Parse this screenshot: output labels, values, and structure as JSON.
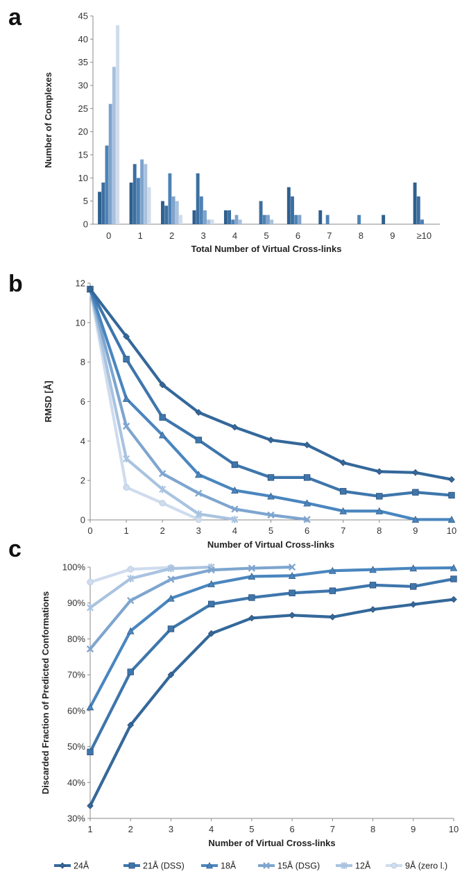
{
  "panels": {
    "a": "a",
    "b": "b",
    "c": "c"
  },
  "chart_data": [
    {
      "type": "bar",
      "panel": "a",
      "xlabel": "Total Number of Virtual Cross-links",
      "ylabel": "Number of Complexes",
      "ylim": [
        0,
        45
      ],
      "yticks": [
        0,
        5,
        10,
        15,
        20,
        25,
        30,
        35,
        40,
        45
      ],
      "grid": false,
      "categories": [
        "0",
        "1",
        "2",
        "3",
        "4",
        "5",
        "6",
        "7",
        "8",
        "9",
        "≥10"
      ],
      "series": [
        {
          "name": "24Å",
          "color": "#2f5f8e",
          "values": [
            7,
            9,
            5,
            3,
            3,
            0,
            8,
            3,
            0,
            2,
            9
          ]
        },
        {
          "name": "21Å (DSS)",
          "color": "#3c6fa0",
          "values": [
            9,
            13,
            4,
            11,
            3,
            5,
            6,
            0,
            0,
            0,
            6
          ]
        },
        {
          "name": "18Å",
          "color": "#4e82b6",
          "values": [
            17,
            10,
            11,
            6,
            1,
            2,
            2,
            2,
            2,
            0,
            1
          ]
        },
        {
          "name": "15Å (DSG)",
          "color": "#7ea3cc",
          "values": [
            26,
            14,
            6,
            3,
            2,
            2,
            2,
            0,
            0,
            0,
            0
          ]
        },
        {
          "name": "12Å",
          "color": "#a8c1de",
          "values": [
            34,
            13,
            5,
            1,
            1,
            1,
            0,
            0,
            0,
            0,
            0
          ]
        },
        {
          "name": "9Å (zero l.)",
          "color": "#cfdcec",
          "values": [
            43,
            8,
            2,
            1,
            0,
            0,
            0,
            0,
            0,
            0,
            0
          ]
        }
      ]
    },
    {
      "type": "line",
      "panel": "b",
      "xlabel": "Number of Virtual Cross-links",
      "ylabel": "RMSD [Å]",
      "xlim": [
        0,
        10
      ],
      "ylim": [
        0,
        12
      ],
      "xticks": [
        0,
        1,
        2,
        3,
        4,
        5,
        6,
        7,
        8,
        9,
        10
      ],
      "yticks": [
        0,
        2,
        4,
        6,
        8,
        10,
        12
      ],
      "grid": false,
      "series": [
        {
          "name": "24Å",
          "color": "#34689a",
          "marker": "diamond",
          "x": [
            0,
            1,
            2,
            3,
            4,
            5,
            6,
            7,
            8,
            9,
            10
          ],
          "y": [
            11.7,
            9.3,
            6.85,
            5.45,
            4.7,
            4.05,
            3.8,
            2.9,
            2.45,
            2.4,
            2.05
          ]
        },
        {
          "name": "21Å (DSS)",
          "color": "#3e76ac",
          "marker": "square",
          "x": [
            0,
            1,
            2,
            3,
            4,
            5,
            6,
            7,
            8,
            9,
            10
          ],
          "y": [
            11.7,
            8.15,
            5.2,
            4.05,
            2.8,
            2.15,
            2.15,
            1.45,
            1.2,
            1.4,
            1.25
          ]
        },
        {
          "name": "18Å",
          "color": "#4a86bf",
          "marker": "triangle",
          "x": [
            0,
            1,
            2,
            3,
            4,
            5,
            6,
            7,
            8,
            9,
            10
          ],
          "y": [
            11.7,
            6.15,
            4.3,
            2.3,
            1.5,
            1.2,
            0.85,
            0.45,
            0.45,
            0.02,
            0.02
          ]
        },
        {
          "name": "15Å (DSG)",
          "color": "#7ea5cf",
          "marker": "x",
          "x": [
            0,
            1,
            2,
            3,
            4,
            5,
            6
          ],
          "y": [
            11.7,
            4.75,
            2.35,
            1.35,
            0.55,
            0.25,
            0.02
          ]
        },
        {
          "name": "12Å",
          "color": "#a9c3e0",
          "marker": "star",
          "x": [
            0,
            1,
            2,
            3,
            4
          ],
          "y": [
            11.7,
            3.1,
            1.55,
            0.3,
            0.02
          ]
        },
        {
          "name": "9Å (zero l.)",
          "color": "#cfdcee",
          "marker": "circle",
          "x": [
            0,
            1,
            2,
            3
          ],
          "y": [
            11.7,
            1.65,
            0.85,
            0.02
          ]
        }
      ]
    },
    {
      "type": "line",
      "panel": "c",
      "xlabel": "Number of Virtual Cross-links",
      "ylabel": "Discarded Fraction of Predicted Conformations",
      "xlim": [
        1,
        10
      ],
      "ylim": [
        30,
        100
      ],
      "xticks": [
        1,
        2,
        3,
        4,
        5,
        6,
        7,
        8,
        9,
        10
      ],
      "yticks": [
        30,
        40,
        50,
        60,
        70,
        80,
        90,
        100
      ],
      "ytick_suffix": "%",
      "grid": false,
      "series": [
        {
          "name": "24Å",
          "color": "#34689a",
          "marker": "diamond",
          "x": [
            1,
            2,
            3,
            4,
            5,
            6,
            7,
            8,
            9,
            10
          ],
          "y": [
            33.5,
            56,
            70,
            81.5,
            85.8,
            86.6,
            86.1,
            88.2,
            89.6,
            91
          ]
        },
        {
          "name": "21Å (DSS)",
          "color": "#3e76ac",
          "marker": "square",
          "x": [
            1,
            2,
            3,
            4,
            5,
            6,
            7,
            8,
            9,
            10
          ],
          "y": [
            48.5,
            70.8,
            82.8,
            89.7,
            91.5,
            92.8,
            93.4,
            95,
            94.6,
            96.7
          ]
        },
        {
          "name": "18Å",
          "color": "#4a86bf",
          "marker": "triangle",
          "x": [
            1,
            2,
            3,
            4,
            5,
            6,
            7,
            8,
            9,
            10
          ],
          "y": [
            61,
            82.2,
            91.3,
            95.3,
            97.4,
            97.6,
            99,
            99.3,
            99.7,
            99.8
          ]
        },
        {
          "name": "15Å (DSG)",
          "color": "#7ea5cf",
          "marker": "x",
          "x": [
            1,
            2,
            3,
            4,
            5,
            6
          ],
          "y": [
            77.2,
            90.7,
            96.6,
            99.2,
            99.7,
            100
          ]
        },
        {
          "name": "12Å",
          "color": "#a9c3e0",
          "marker": "star",
          "x": [
            1,
            2,
            3,
            4
          ],
          "y": [
            88.7,
            96.8,
            99.6,
            100
          ]
        },
        {
          "name": "9Å (zero l.)",
          "color": "#cfdcee",
          "marker": "circle",
          "x": [
            1,
            2,
            3
          ],
          "y": [
            95.8,
            99.4,
            99.9
          ]
        }
      ]
    }
  ],
  "legend": {
    "placement": "bottom",
    "entries": [
      {
        "label": "24Å",
        "color": "#34689a",
        "marker": "diamond"
      },
      {
        "label": "21Å (DSS)",
        "color": "#3e76ac",
        "marker": "square"
      },
      {
        "label": "18Å",
        "color": "#4a86bf",
        "marker": "triangle"
      },
      {
        "label": "15Å (DSG)",
        "color": "#7ea5cf",
        "marker": "x"
      },
      {
        "label": "12Å",
        "color": "#a9c3e0",
        "marker": "star"
      },
      {
        "label": "9Å (zero l.)",
        "color": "#cfdcee",
        "marker": "circle"
      }
    ]
  }
}
